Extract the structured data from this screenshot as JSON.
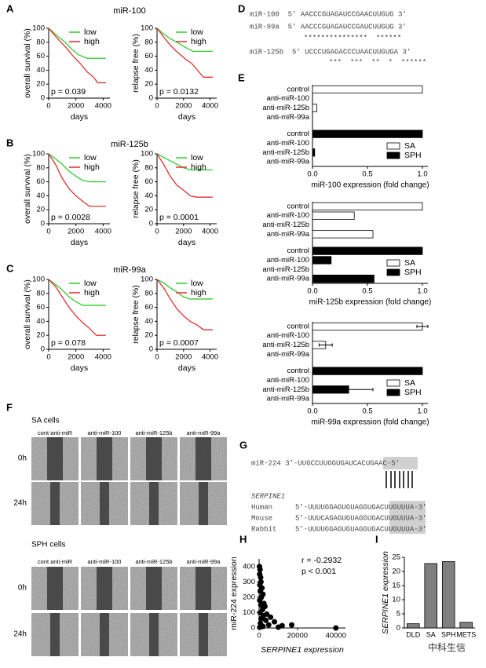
{
  "panel_labels": [
    "A",
    "B",
    "C",
    "D",
    "E",
    "F",
    "G",
    "H",
    "I"
  ],
  "km_titles": [
    "miR-100",
    "miR-125b",
    "miR-99a"
  ],
  "panel_d": {
    "lines": [
      "miR-100  5’ AACCCGUAGAUCCGAACUUGUG 3’",
      "miR-99a  5’ AACCCGUAGAUCCGAUCUUGUG 3’",
      "***************  ******",
      "miR-125b  5’ UCCCUGAGACCCUAACUUGUGA 3’",
      "***  ***  **  *  ******"
    ]
  },
  "panel_f": {
    "sa_title": "SA cells",
    "sph_title": "SPH cells",
    "sa_columns": [
      "cont anti-miR",
      "anti-miR-100",
      "anti-miR-125b",
      "anti-miR-99a"
    ],
    "sph_columns": [
      "cont anti-miR",
      "anti-miR-100",
      "anti-miR-125b",
      "anti-miR-99a"
    ],
    "rows": [
      "0h",
      "24h"
    ]
  },
  "panel_g": {
    "mirna": "miR-224 3’-UUGCCUUGGUGAUCACUGAAC-5’",
    "gene": "SERPINE1",
    "species": [
      "Human",
      "Mouse",
      "Rabbit"
    ],
    "seqs": [
      "5’-UUUUGGAGUGUAGGUGACUUGUUUA-3’",
      "5’-UUUCAGAGUGUAGGUGACUUGUUUA-3’",
      "5’-UUUUGGAGUGUAGGUGACUUGUUUA-3’"
    ]
  },
  "watermark": "中科生信",
  "chart_data": [
    {
      "type": "line",
      "ylabel": "overall survival (%)",
      "xlabel": "days",
      "xlim": [
        0,
        4500
      ],
      "xticks": [
        0,
        2000,
        4000
      ],
      "ylim": [
        0,
        100
      ],
      "yticks": [
        0,
        20,
        40,
        60,
        80,
        100
      ],
      "legend": "upper right",
      "annotation": "p = 0.039",
      "series": [
        {
          "name": "low",
          "color": "#2ecc2e",
          "x": [
            0,
            300,
            700,
            1200,
            1700,
            2200,
            2800,
            4200
          ],
          "values": [
            100,
            95,
            88,
            80,
            70,
            62,
            57,
            57
          ]
        },
        {
          "name": "high",
          "color": "#e03030",
          "x": [
            0,
            300,
            800,
            1300,
            1800,
            2300,
            2800,
            3300,
            3600,
            4200
          ],
          "values": [
            100,
            93,
            82,
            72,
            60,
            50,
            38,
            30,
            22,
            22
          ]
        }
      ]
    },
    {
      "type": "line",
      "ylabel": "relapse free (%)",
      "xlabel": "days",
      "xlim": [
        0,
        4500
      ],
      "xticks": [
        0,
        2000,
        4000
      ],
      "ylim": [
        0,
        100
      ],
      "yticks": [
        0,
        20,
        40,
        60,
        80,
        100
      ],
      "legend": "upper right",
      "annotation": "p = 0.0132",
      "series": [
        {
          "name": "low",
          "color": "#2ecc2e",
          "x": [
            0,
            500,
            1000,
            1500,
            2200,
            2700,
            4200
          ],
          "values": [
            100,
            92,
            85,
            80,
            72,
            67,
            67
          ]
        },
        {
          "name": "high",
          "color": "#e03030",
          "x": [
            0,
            400,
            900,
            1400,
            1900,
            2200,
            2600,
            3500,
            4200
          ],
          "values": [
            100,
            90,
            78,
            68,
            60,
            55,
            50,
            30,
            30
          ]
        }
      ]
    },
    {
      "type": "line",
      "ylabel": "overall survival (%)",
      "xlabel": "days",
      "xlim": [
        0,
        4500
      ],
      "xticks": [
        0,
        2000,
        4000
      ],
      "ylim": [
        0,
        100
      ],
      "yticks": [
        0,
        20,
        40,
        60,
        80,
        100
      ],
      "legend": "upper right",
      "annotation": "p = 0.0028",
      "series": [
        {
          "name": "low",
          "color": "#2ecc2e",
          "x": [
            0,
            500,
            1000,
            1500,
            2000,
            2500,
            3000,
            4200
          ],
          "values": [
            100,
            93,
            85,
            75,
            68,
            62,
            60,
            60
          ]
        },
        {
          "name": "high",
          "color": "#e03030",
          "x": [
            0,
            500,
            1000,
            1500,
            2000,
            2500,
            3000,
            4200
          ],
          "values": [
            100,
            85,
            65,
            50,
            40,
            32,
            25,
            25
          ]
        }
      ]
    },
    {
      "type": "line",
      "ylabel": "relapse free (%)",
      "xlabel": "days",
      "xlim": [
        0,
        4500
      ],
      "xticks": [
        0,
        2000,
        4000
      ],
      "ylim": [
        0,
        100
      ],
      "yticks": [
        0,
        20,
        40,
        60,
        80,
        100
      ],
      "legend": "upper right",
      "annotation": "p = 0.0001",
      "series": [
        {
          "name": "low",
          "color": "#2ecc2e",
          "x": [
            0,
            500,
            1000,
            1500,
            2000,
            2500,
            4200
          ],
          "values": [
            100,
            95,
            90,
            85,
            80,
            77,
            77
          ]
        },
        {
          "name": "high",
          "color": "#e03030",
          "x": [
            0,
            500,
            1000,
            1500,
            2000,
            2500,
            3000,
            4200
          ],
          "values": [
            100,
            85,
            68,
            55,
            48,
            40,
            38,
            38
          ]
        }
      ]
    },
    {
      "type": "line",
      "ylabel": "overall survival (%)",
      "xlabel": "days",
      "xlim": [
        0,
        4500
      ],
      "xticks": [
        0,
        2000,
        4000
      ],
      "ylim": [
        0,
        100
      ],
      "yticks": [
        0,
        20,
        40,
        60,
        80,
        100
      ],
      "legend": "upper right",
      "annotation": "p = 0.078",
      "series": [
        {
          "name": "low",
          "color": "#2ecc2e",
          "x": [
            0,
            500,
            1000,
            1500,
            2000,
            2500,
            4200
          ],
          "values": [
            100,
            93,
            85,
            75,
            68,
            63,
            63
          ]
        },
        {
          "name": "high",
          "color": "#e03030",
          "x": [
            0,
            500,
            1000,
            1500,
            2000,
            2500,
            3000,
            3500,
            4200
          ],
          "values": [
            100,
            90,
            75,
            60,
            48,
            38,
            30,
            20,
            20
          ]
        }
      ]
    },
    {
      "type": "line",
      "ylabel": "relapse free (%)",
      "xlabel": "days",
      "xlim": [
        0,
        4500
      ],
      "xticks": [
        0,
        2000,
        4000
      ],
      "ylim": [
        0,
        100
      ],
      "yticks": [
        0,
        20,
        40,
        60,
        80,
        100
      ],
      "legend": "upper right",
      "annotation": "p = 0.0007",
      "series": [
        {
          "name": "low",
          "color": "#2ecc2e",
          "x": [
            0,
            500,
            1000,
            1500,
            2000,
            2500,
            4200
          ],
          "values": [
            100,
            95,
            88,
            82,
            75,
            72,
            72
          ]
        },
        {
          "name": "high",
          "color": "#e03030",
          "x": [
            0,
            500,
            1000,
            1500,
            2000,
            2500,
            3000,
            3500,
            4200
          ],
          "values": [
            100,
            88,
            72,
            58,
            48,
            40,
            35,
            28,
            28
          ]
        }
      ]
    },
    {
      "type": "barh",
      "xlabel": "miR-100 expression (fold change)",
      "xlim": [
        0,
        1.05
      ],
      "xticks": [
        {
          "value": 0,
          "label": "0.0"
        },
        0.5,
        {
          "value": 1,
          "label": "1.0"
        }
      ],
      "legend": "lower right",
      "categories": [
        "control",
        "anti-miR-100",
        "anti-miR-125b",
        "anti-miR-99a",
        "control",
        "anti-miR-100",
        "anti-miR-125b",
        "anti-miR-99a"
      ],
      "series": [
        {
          "name": "SA",
          "color": "#ffffff",
          "values": [
            1.0,
            0,
            0.04,
            0,
            null,
            null,
            null,
            null
          ]
        },
        {
          "name": "SPH",
          "color": "#000000",
          "values": [
            null,
            null,
            null,
            null,
            1.0,
            0,
            0.02,
            0
          ]
        }
      ]
    },
    {
      "type": "barh",
      "xlabel": "miR-125b expression (fold change)",
      "xlim": [
        0,
        1.05
      ],
      "xticks": [
        {
          "value": 0,
          "label": "0.0"
        },
        0.5,
        {
          "value": 1,
          "label": "1.0"
        }
      ],
      "legend": "lower right",
      "categories": [
        "control",
        "anti-miR-100",
        "anti-miR-125b",
        "anti-miR-99a",
        "control",
        "anti-miR-100",
        "anti-miR-125b",
        "anti-miR-99a"
      ],
      "series": [
        {
          "name": "SA",
          "color": "#ffffff",
          "values": [
            1.0,
            0.38,
            0,
            0.55,
            null,
            null,
            null,
            null
          ]
        },
        {
          "name": "SPH",
          "color": "#000000",
          "values": [
            null,
            null,
            null,
            null,
            1.0,
            0.17,
            0,
            0.56
          ]
        }
      ]
    },
    {
      "type": "barh",
      "xlabel": "miR-99a expression (fold change)",
      "xlim": [
        0,
        1.05
      ],
      "xticks": [
        {
          "value": 0,
          "label": "0.0"
        },
        0.5,
        {
          "value": 1,
          "label": "1.0"
        }
      ],
      "legend": "lower right",
      "categories": [
        "control",
        "anti-miR-100",
        "anti-miR-125b",
        "anti-miR-99a",
        "control",
        "anti-miR-100",
        "anti-miR-125b",
        "anti-miR-99a"
      ],
      "series": [
        {
          "name": "SA",
          "color": "#ffffff",
          "values": [
            1.0,
            0,
            0.12,
            0,
            null,
            null,
            null,
            null
          ],
          "errors": [
            0.05,
            null,
            0.06,
            null,
            null,
            null,
            null,
            null
          ]
        },
        {
          "name": "SPH",
          "color": "#000000",
          "values": [
            null,
            null,
            null,
            null,
            1.0,
            0,
            0.33,
            0
          ],
          "errors": [
            null,
            null,
            null,
            null,
            null,
            null,
            0.22,
            null
          ]
        }
      ]
    },
    {
      "type": "scatter",
      "xlabel": "SERPINE1 expression",
      "ylabel": "miR-224 expression",
      "xlim": [
        0,
        45000
      ],
      "xticks": [
        0,
        20000,
        40000
      ],
      "ylim": [
        0,
        450
      ],
      "yticks": [
        0,
        100,
        200,
        300,
        400
      ],
      "color": "#000000",
      "annotations": [
        "r = -0.2932",
        "p < 0.001"
      ],
      "x": [
        200,
        500,
        300,
        800,
        1000,
        400,
        1500,
        600,
        2000,
        1200,
        300,
        2500,
        900,
        3000,
        1800,
        500,
        4000,
        2200,
        6000,
        1000,
        3500,
        8000,
        700,
        5000,
        12000,
        2000,
        17000,
        10000,
        400,
        40000
      ],
      "values": [
        400,
        380,
        350,
        330,
        300,
        280,
        260,
        240,
        220,
        200,
        180,
        160,
        150,
        140,
        120,
        100,
        90,
        80,
        70,
        60,
        50,
        40,
        30,
        20,
        15,
        10,
        20,
        5,
        5,
        0
      ]
    },
    {
      "type": "bar",
      "ylabel": "SERPINE1 expression",
      "ylim": [
        0,
        25
      ],
      "yticks": [
        0,
        5,
        10,
        15,
        20,
        25
      ],
      "color": "#808080",
      "categories": [
        "DLD",
        "SA",
        "SPH",
        "METS"
      ],
      "values": [
        1.5,
        22.8,
        23.5,
        2
      ]
    }
  ]
}
